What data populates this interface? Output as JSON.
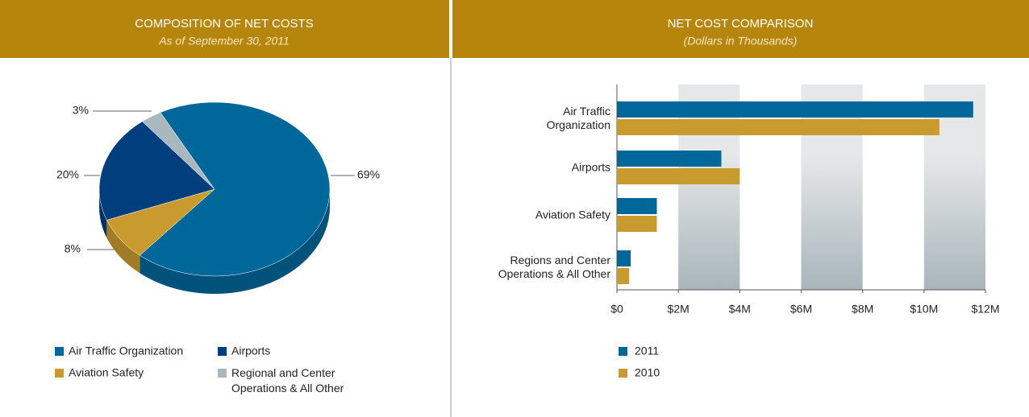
{
  "chart_data": [
    {
      "type": "pie",
      "title": "COMPOSITION OF NET COSTS",
      "subtitle": "As of September 30, 2011",
      "categories": [
        "Air Traffic Organization",
        "Aviation Safety",
        "Airports",
        "Regional and Center Operations & All Other"
      ],
      "values": [
        69,
        8,
        20,
        3
      ],
      "value_labels": [
        "69%",
        "8%",
        "20%",
        "3%"
      ],
      "colors": [
        "#00679a",
        "#c99a2e",
        "#003e7e",
        "#a9b8bf"
      ]
    },
    {
      "type": "bar",
      "orientation": "horizontal",
      "title": "NET COST COMPARISON",
      "subtitle": "(Dollars in Thousands)",
      "categories": [
        "Air Traffic Organization",
        "Airports",
        "Aviation Safety",
        "Regions and Center Operations & All Other"
      ],
      "series": [
        {
          "name": "2011",
          "color": "#00679a",
          "values": [
            11.6,
            3.4,
            1.3,
            0.45
          ]
        },
        {
          "name": "2010",
          "color": "#c99a2e",
          "values": [
            10.5,
            4.0,
            1.3,
            0.4
          ]
        }
      ],
      "xlim": [
        0,
        12
      ],
      "xticks": [
        {
          "value": 0,
          "label": "$0"
        },
        {
          "value": 2,
          "label": "$2M"
        },
        {
          "value": 4,
          "label": "$4M"
        },
        {
          "value": 6,
          "label": "$6M"
        },
        {
          "value": 8,
          "label": "$8M"
        },
        {
          "value": 10,
          "label": "$10M"
        },
        {
          "value": 12,
          "label": "$12M"
        }
      ]
    }
  ]
}
